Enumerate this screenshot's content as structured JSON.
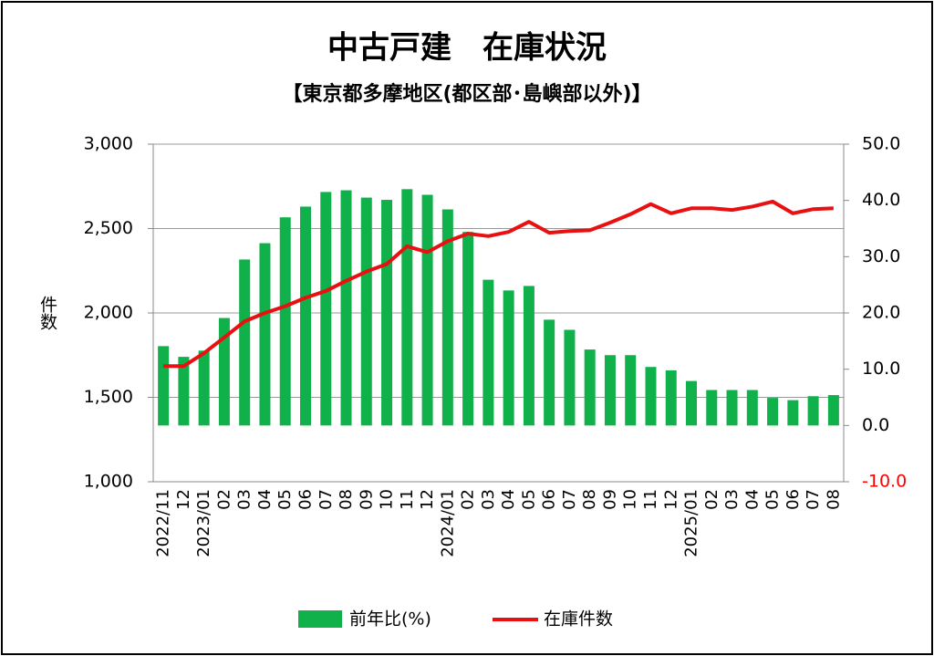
{
  "chart_data": {
    "type": "bar_line",
    "title": "中古戸建　在庫状況",
    "subtitle": "【東京都多摩地区(都区部･島嶼部以外)】",
    "y_label": "件数",
    "categories": [
      "2022/11",
      "12",
      "2023/01",
      "02",
      "03",
      "04",
      "05",
      "06",
      "07",
      "08",
      "09",
      "10",
      "11",
      "12",
      "2024/01",
      "02",
      "03",
      "04",
      "05",
      "06",
      "07",
      "08",
      "09",
      "10",
      "11",
      "12",
      "2025/01",
      "02",
      "03",
      "04",
      "05",
      "06",
      "07",
      "08"
    ],
    "series": [
      {
        "name": "前年比(%)",
        "type": "bar",
        "axis": "y2",
        "color": "#10b04a",
        "values": [
          14.1,
          12.2,
          13.3,
          19.1,
          29.5,
          32.4,
          37.0,
          38.9,
          41.5,
          41.8,
          40.5,
          40.1,
          42.0,
          41.0,
          38.4,
          34.4,
          25.9,
          24.0,
          24.8,
          18.8,
          17.0,
          13.5,
          12.5,
          12.5,
          10.4,
          9.8,
          7.9,
          6.3,
          6.3,
          6.3,
          4.9,
          4.5,
          5.2,
          5.4
        ]
      },
      {
        "name": "在庫件数",
        "type": "line",
        "axis": "y",
        "color": "#e81010",
        "values": [
          1685,
          1685,
          1762,
          1855,
          1950,
          2000,
          2040,
          2090,
          2130,
          2190,
          2245,
          2290,
          2395,
          2360,
          2425,
          2470,
          2455,
          2480,
          2540,
          2475,
          2485,
          2490,
          2535,
          2585,
          2645,
          2590,
          2620,
          2620,
          2610,
          2630,
          2660,
          2590,
          2615,
          2620
        ]
      }
    ],
    "ylim": [
      1000,
      3000
    ],
    "yticks": [
      {
        "value": 1000,
        "label": "1,000"
      },
      {
        "value": 1500,
        "label": "1,500"
      },
      {
        "value": 2000,
        "label": "2,000"
      },
      {
        "value": 2500,
        "label": "2,500"
      },
      {
        "value": 3000,
        "label": "3,000"
      }
    ],
    "y2lim": [
      -10,
      50
    ],
    "y2ticks": [
      {
        "value": -10,
        "label": "-10.0",
        "color": "#ff0000"
      },
      {
        "value": 0,
        "label": "0.0"
      },
      {
        "value": 10,
        "label": "10.0"
      },
      {
        "value": 20,
        "label": "20.0"
      },
      {
        "value": 30,
        "label": "30.0"
      },
      {
        "value": 40,
        "label": "40.0"
      },
      {
        "value": 50,
        "label": "50.0"
      }
    ],
    "grid": true
  }
}
